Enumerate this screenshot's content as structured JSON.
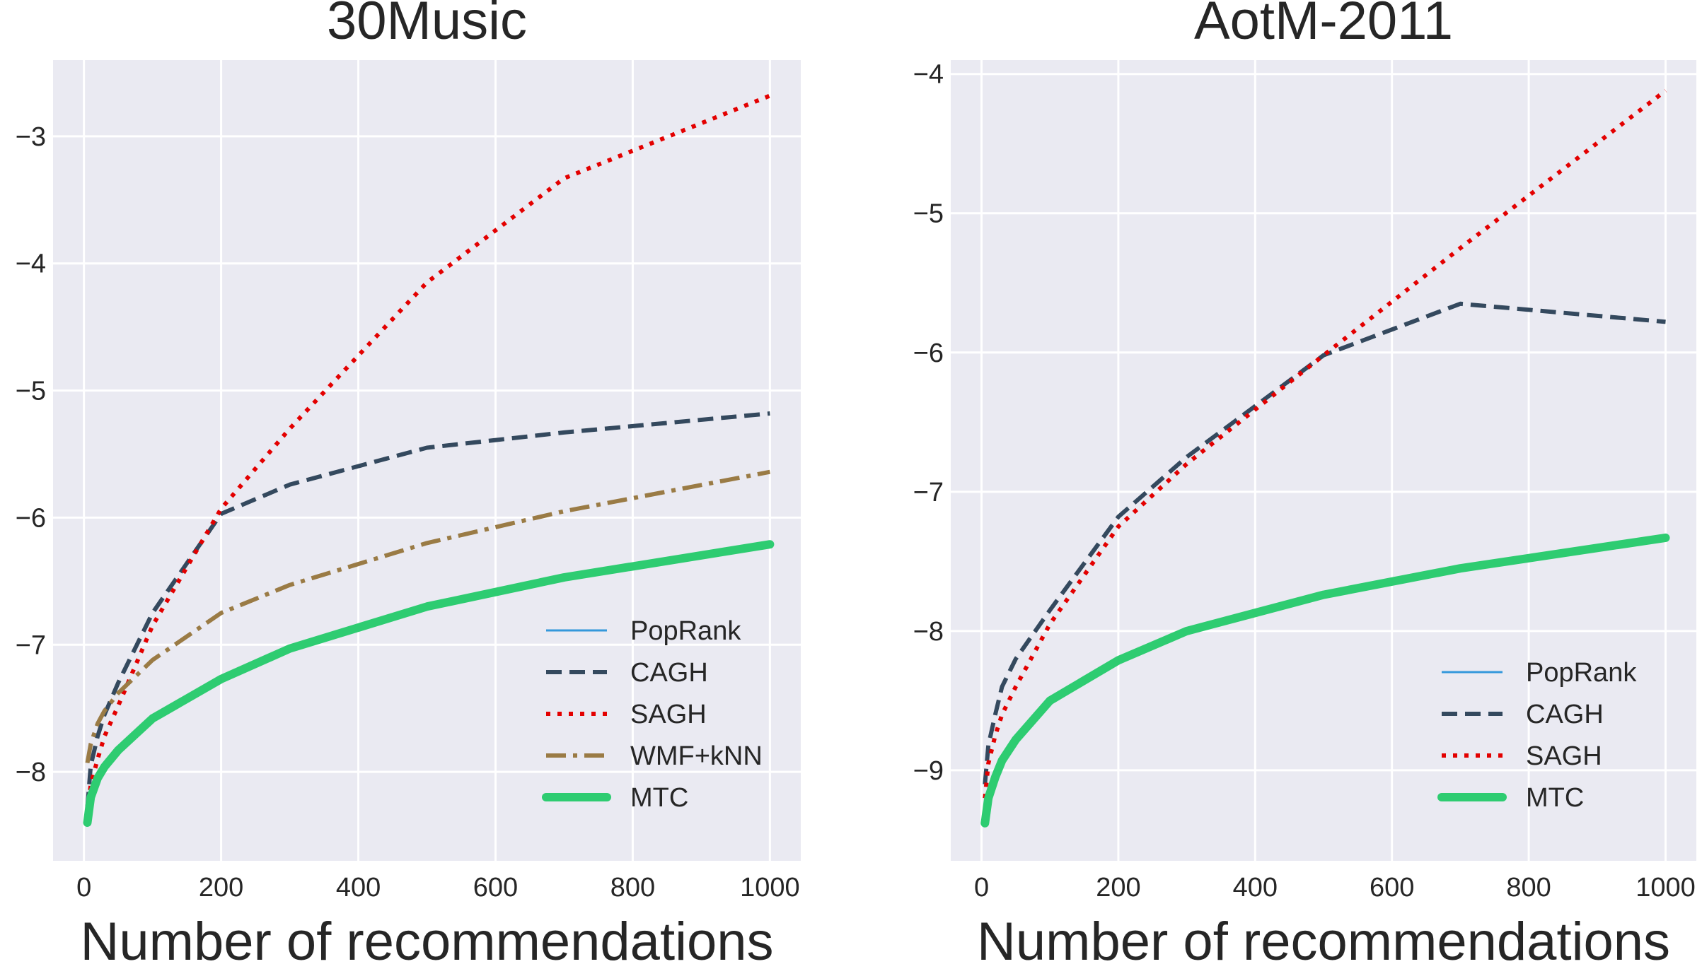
{
  "chart_data": [
    {
      "type": "line",
      "title": "30Music",
      "xlabel": "Number of recommendations",
      "ylabel": "",
      "xlim": [
        -45,
        1045
      ],
      "ylim": [
        -8.7,
        -2.4
      ],
      "xticks": [
        0,
        200,
        400,
        600,
        800,
        1000
      ],
      "yticks": [
        -8,
        -7,
        -6,
        -5,
        -4,
        -3
      ],
      "legend_position": "lower-right",
      "series": [
        {
          "name": "PopRank",
          "color": "#3498db",
          "style": "solid-thin",
          "x": [],
          "y": []
        },
        {
          "name": "CAGH",
          "color": "#34495e",
          "style": "dashed",
          "x": [
            5,
            10,
            20,
            30,
            50,
            100,
            200,
            300,
            500,
            700,
            1000
          ],
          "y": [
            -8.28,
            -7.95,
            -7.72,
            -7.55,
            -7.3,
            -6.75,
            -5.97,
            -5.74,
            -5.45,
            -5.33,
            -5.18
          ]
        },
        {
          "name": "SAGH",
          "color": "#e30000",
          "style": "dotted",
          "x": [
            5,
            10,
            20,
            30,
            50,
            100,
            200,
            300,
            500,
            700,
            1000
          ],
          "y": [
            -8.32,
            -8.1,
            -7.9,
            -7.72,
            -7.48,
            -6.85,
            -5.93,
            -5.3,
            -4.15,
            -3.33,
            -2.68
          ]
        },
        {
          "name": "WMF+kNN",
          "color": "#9a7b45",
          "style": "dashdot",
          "x": [
            5,
            10,
            20,
            30,
            50,
            100,
            200,
            300,
            500,
            700,
            1000
          ],
          "y": [
            -7.93,
            -7.78,
            -7.62,
            -7.52,
            -7.38,
            -7.12,
            -6.75,
            -6.53,
            -6.2,
            -5.95,
            -5.64
          ]
        },
        {
          "name": "MTC",
          "color": "#2ecc71",
          "style": "solid-thick",
          "x": [
            5,
            10,
            20,
            30,
            50,
            100,
            200,
            300,
            500,
            700,
            1000
          ],
          "y": [
            -8.4,
            -8.2,
            -8.05,
            -7.96,
            -7.83,
            -7.58,
            -7.27,
            -7.03,
            -6.7,
            -6.47,
            -6.21
          ]
        }
      ]
    },
    {
      "type": "line",
      "title": "AotM-2011",
      "xlabel": "Number of recommendations",
      "ylabel": "",
      "xlim": [
        -45,
        1045
      ],
      "ylim": [
        -9.65,
        -3.9
      ],
      "xticks": [
        0,
        200,
        400,
        600,
        800,
        1000
      ],
      "yticks": [
        -9,
        -8,
        -7,
        -6,
        -5,
        -4
      ],
      "legend_position": "lower-right",
      "series": [
        {
          "name": "PopRank",
          "color": "#3498db",
          "style": "solid-thin",
          "x": [],
          "y": []
        },
        {
          "name": "CAGH",
          "color": "#34495e",
          "style": "dashed",
          "x": [
            5,
            10,
            20,
            30,
            50,
            100,
            200,
            300,
            500,
            700,
            1000
          ],
          "y": [
            -9.1,
            -8.82,
            -8.6,
            -8.4,
            -8.2,
            -7.85,
            -7.18,
            -6.75,
            -6.02,
            -5.65,
            -5.78
          ]
        },
        {
          "name": "SAGH",
          "color": "#e30000",
          "style": "dotted",
          "x": [
            5,
            10,
            20,
            30,
            50,
            100,
            200,
            300,
            500,
            700,
            1000
          ],
          "y": [
            -9.2,
            -8.95,
            -8.75,
            -8.6,
            -8.4,
            -7.95,
            -7.25,
            -6.8,
            -6.02,
            -5.25,
            -4.12
          ]
        },
        {
          "name": "MTC",
          "color": "#2ecc71",
          "style": "solid-thick",
          "x": [
            5,
            10,
            20,
            30,
            50,
            100,
            200,
            300,
            500,
            700,
            1000
          ],
          "y": [
            -9.38,
            -9.2,
            -9.05,
            -8.93,
            -8.78,
            -8.5,
            -8.21,
            -8.0,
            -7.74,
            -7.55,
            -7.33
          ]
        }
      ]
    }
  ]
}
